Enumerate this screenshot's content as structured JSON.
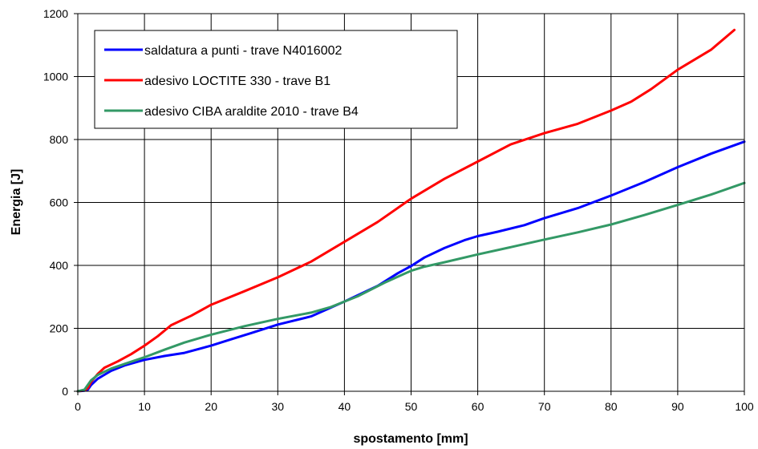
{
  "chart_data": {
    "type": "line",
    "title": "",
    "xlabel": "spostamento [mm]",
    "ylabel": "Energia [J]",
    "xlim": [
      0,
      100
    ],
    "ylim": [
      0,
      1200
    ],
    "xticks": [
      0,
      10,
      20,
      30,
      40,
      50,
      60,
      70,
      80,
      90,
      100
    ],
    "yticks": [
      0,
      200,
      400,
      600,
      800,
      1000,
      1200
    ],
    "grid": true,
    "legend_position": "top-left",
    "series": [
      {
        "name": "saldatura a punti - trave N4016002",
        "color": "#0000ff",
        "points": [
          [
            0,
            0
          ],
          [
            1,
            2
          ],
          [
            1.5,
            5
          ],
          [
            2,
            20
          ],
          [
            3,
            40
          ],
          [
            5,
            65
          ],
          [
            7,
            82
          ],
          [
            10,
            100
          ],
          [
            13,
            112
          ],
          [
            16,
            122
          ],
          [
            20,
            145
          ],
          [
            23,
            165
          ],
          [
            26,
            185
          ],
          [
            30,
            212
          ],
          [
            35,
            238
          ],
          [
            40,
            285
          ],
          [
            45,
            335
          ],
          [
            48,
            375
          ],
          [
            50,
            398
          ],
          [
            52,
            425
          ],
          [
            55,
            455
          ],
          [
            58,
            480
          ],
          [
            60,
            493
          ],
          [
            63,
            507
          ],
          [
            67,
            528
          ],
          [
            70,
            550
          ],
          [
            75,
            582
          ],
          [
            80,
            622
          ],
          [
            85,
            665
          ],
          [
            90,
            712
          ],
          [
            95,
            755
          ],
          [
            100,
            793
          ]
        ]
      },
      {
        "name": "adesivo LOCTITE 330 - trave B1",
        "color": "#ff0000",
        "points": [
          [
            0,
            0
          ],
          [
            1,
            3
          ],
          [
            1.5,
            10
          ],
          [
            2,
            30
          ],
          [
            3,
            55
          ],
          [
            4,
            75
          ],
          [
            6,
            95
          ],
          [
            8,
            118
          ],
          [
            10,
            145
          ],
          [
            12,
            175
          ],
          [
            14,
            210
          ],
          [
            17,
            240
          ],
          [
            20,
            275
          ],
          [
            25,
            318
          ],
          [
            30,
            362
          ],
          [
            35,
            412
          ],
          [
            40,
            475
          ],
          [
            45,
            538
          ],
          [
            50,
            612
          ],
          [
            55,
            675
          ],
          [
            60,
            730
          ],
          [
            65,
            785
          ],
          [
            70,
            820
          ],
          [
            75,
            850
          ],
          [
            80,
            892
          ],
          [
            83,
            920
          ],
          [
            86,
            960
          ],
          [
            90,
            1022
          ],
          [
            95,
            1085
          ],
          [
            98.5,
            1148
          ]
        ]
      },
      {
        "name": "adesivo CIBA araldite 2010 - trave B4",
        "color": "#339966",
        "points": [
          [
            0,
            0
          ],
          [
            1,
            5
          ],
          [
            2,
            35
          ],
          [
            3,
            52
          ],
          [
            5,
            72
          ],
          [
            7,
            87
          ],
          [
            10,
            108
          ],
          [
            13,
            132
          ],
          [
            16,
            155
          ],
          [
            20,
            180
          ],
          [
            25,
            207
          ],
          [
            30,
            230
          ],
          [
            35,
            250
          ],
          [
            38,
            268
          ],
          [
            42,
            302
          ],
          [
            46,
            345
          ],
          [
            50,
            383
          ],
          [
            52,
            396
          ],
          [
            55,
            410
          ],
          [
            60,
            435
          ],
          [
            65,
            458
          ],
          [
            70,
            482
          ],
          [
            75,
            505
          ],
          [
            80,
            530
          ],
          [
            85,
            560
          ],
          [
            90,
            592
          ],
          [
            95,
            625
          ],
          [
            100,
            662
          ]
        ]
      }
    ]
  }
}
